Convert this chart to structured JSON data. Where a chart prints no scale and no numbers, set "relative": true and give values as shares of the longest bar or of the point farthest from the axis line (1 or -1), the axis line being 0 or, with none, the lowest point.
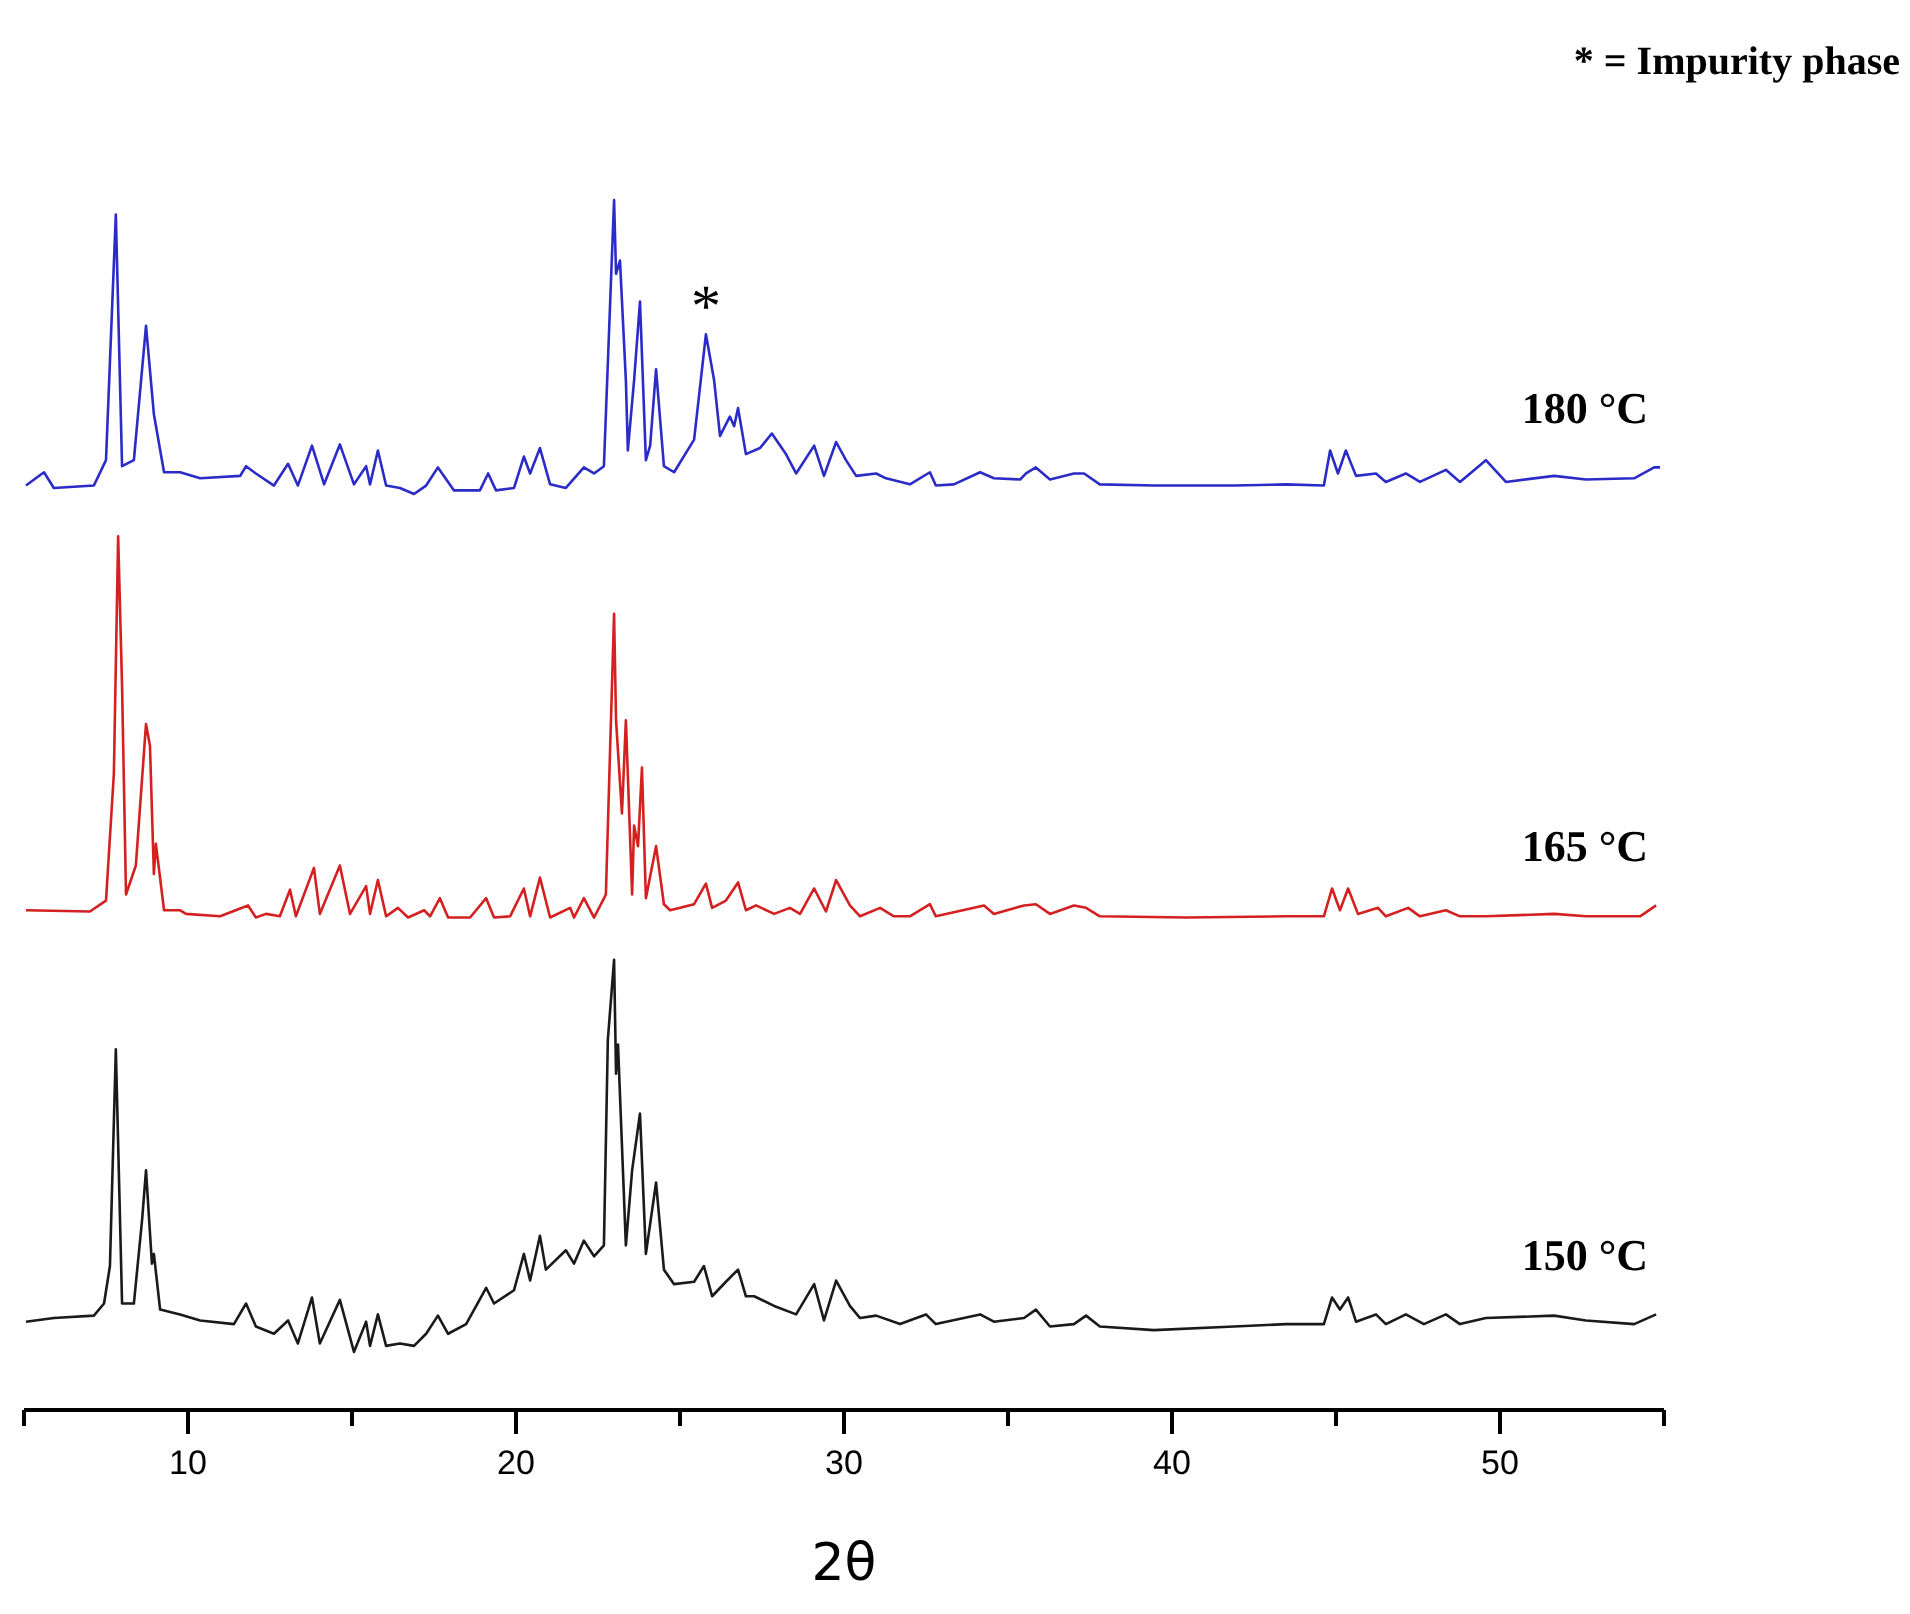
{
  "chart_data": {
    "type": "line",
    "relative": true,
    "xlabel": "2θ",
    "grid": false,
    "marker": "none",
    "line_style": "solid",
    "xlim": [
      5,
      55
    ],
    "xticks": [
      {
        "value": 5,
        "label": null
      },
      10,
      {
        "value": 15,
        "label": null
      },
      20,
      {
        "value": 25,
        "label": null
      },
      30,
      {
        "value": 35,
        "label": null
      },
      40,
      {
        "value": 45,
        "label": null
      },
      50,
      {
        "value": 55,
        "label": null
      }
    ],
    "annotations": [
      "* = Impurity phase",
      {
        "text": "*",
        "x": 25.79,
        "y": 0.889
      }
    ],
    "series": [
      {
        "name": "180 °C",
        "color": "#2b2bc8",
        "x": [
          5.06,
          5.61,
          5.91,
          7.13,
          7.5,
          7.8,
          7.99,
          8.35,
          8.72,
          8.96,
          9.27,
          9.76,
          10.37,
          11.59,
          11.77,
          12.07,
          12.62,
          13.05,
          13.35,
          13.78,
          14.15,
          14.63,
          15.06,
          15.43,
          15.55,
          15.79,
          16.04,
          16.46,
          16.89,
          17.26,
          17.62,
          18.11,
          18.9,
          19.15,
          19.39,
          19.94,
          20.24,
          20.43,
          20.73,
          21.04,
          21.52,
          22.07,
          22.38,
          22.68,
          22.99,
          23.05,
          23.17,
          23.35,
          23.41,
          23.6,
          23.78,
          23.96,
          24.09,
          24.27,
          24.51,
          24.82,
          25.43,
          25.79,
          26.04,
          26.22,
          26.52,
          26.65,
          26.77,
          27.01,
          27.44,
          27.8,
          28.23,
          28.54,
          29.09,
          29.39,
          29.76,
          30.06,
          30.37,
          30.98,
          31.28,
          32.01,
          32.62,
          32.8,
          33.35,
          34.15,
          34.57,
          35.37,
          35.55,
          35.85,
          36.28,
          37.01,
          37.32,
          37.8,
          39.45,
          41.89,
          43.48,
          44.63,
          44.82,
          45.06,
          45.3,
          45.61,
          46.22,
          46.52,
          47.13,
          47.56,
          48.35,
          48.78,
          49.57,
          50.18,
          51.65,
          52.62,
          54.09,
          54.7,
          54.88
        ],
        "values": [
          0.764,
          0.775,
          0.762,
          0.764,
          0.785,
          0.988,
          0.78,
          0.785,
          0.896,
          0.823,
          0.775,
          0.775,
          0.77,
          0.772,
          0.78,
          0.774,
          0.764,
          0.782,
          0.764,
          0.797,
          0.765,
          0.798,
          0.765,
          0.78,
          0.765,
          0.793,
          0.764,
          0.762,
          0.757,
          0.764,
          0.779,
          0.76,
          0.76,
          0.774,
          0.76,
          0.762,
          0.788,
          0.774,
          0.795,
          0.765,
          0.762,
          0.779,
          0.774,
          0.78,
          1,
          0.939,
          0.95,
          0.851,
          0.793,
          0.851,
          0.916,
          0.785,
          0.797,
          0.86,
          0.78,
          0.775,
          0.802,
          0.889,
          0.851,
          0.805,
          0.821,
          0.813,
          0.828,
          0.79,
          0.795,
          0.807,
          0.79,
          0.774,
          0.797,
          0.772,
          0.8,
          0.785,
          0.772,
          0.774,
          0.77,
          0.765,
          0.775,
          0.764,
          0.765,
          0.775,
          0.77,
          0.769,
          0.774,
          0.779,
          0.769,
          0.774,
          0.774,
          0.765,
          0.764,
          0.764,
          0.765,
          0.764,
          0.793,
          0.774,
          0.793,
          0.772,
          0.774,
          0.767,
          0.774,
          0.767,
          0.777,
          0.767,
          0.785,
          0.767,
          0.772,
          0.769,
          0.77,
          0.779,
          0.779
        ]
      },
      {
        "name": "165 °C",
        "color": "#d42020",
        "x": [
          5.06,
          7.01,
          7.5,
          7.74,
          7.87,
          7.99,
          8.11,
          8.41,
          8.72,
          8.84,
          8.96,
          9.02,
          9.27,
          9.76,
          9.94,
          10.98,
          11.83,
          12.07,
          12.38,
          12.8,
          13.11,
          13.29,
          13.84,
          14.02,
          14.63,
          14.94,
          15.43,
          15.55,
          15.79,
          16.04,
          16.4,
          16.71,
          17.2,
          17.38,
          17.68,
          17.93,
          18.6,
          19.09,
          19.33,
          19.82,
          20.24,
          20.43,
          20.73,
          21.04,
          21.65,
          21.77,
          22.07,
          22.38,
          22.74,
          22.99,
          23.05,
          23.23,
          23.35,
          23.54,
          23.6,
          23.72,
          23.84,
          23.96,
          24.27,
          24.51,
          24.7,
          25.43,
          25.79,
          25.98,
          26.4,
          26.77,
          27.01,
          27.32,
          27.87,
          28.35,
          28.66,
          29.09,
          29.45,
          29.76,
          30.18,
          30.49,
          31.1,
          31.52,
          32.01,
          32.62,
          32.8,
          34.27,
          34.57,
          35.49,
          35.85,
          36.28,
          37.01,
          37.38,
          37.8,
          40.43,
          43.48,
          44.63,
          44.88,
          45.12,
          45.37,
          45.67,
          46.28,
          46.52,
          47.2,
          47.56,
          48.35,
          48.78,
          49.57,
          51.65,
          52.62,
          54.27,
          54.76
        ],
        "values": [
          0.413,
          0.412,
          0.421,
          0.526,
          0.722,
          0.598,
          0.426,
          0.45,
          0.567,
          0.549,
          0.443,
          0.468,
          0.413,
          0.413,
          0.41,
          0.408,
          0.417,
          0.407,
          0.41,
          0.408,
          0.43,
          0.408,
          0.448,
          0.41,
          0.45,
          0.41,
          0.433,
          0.41,
          0.438,
          0.408,
          0.415,
          0.407,
          0.413,
          0.408,
          0.423,
          0.407,
          0.407,
          0.423,
          0.407,
          0.408,
          0.431,
          0.408,
          0.44,
          0.407,
          0.415,
          0.407,
          0.423,
          0.407,
          0.426,
          0.658,
          0.57,
          0.493,
          0.57,
          0.426,
          0.483,
          0.466,
          0.531,
          0.423,
          0.466,
          0.418,
          0.413,
          0.418,
          0.435,
          0.415,
          0.421,
          0.436,
          0.413,
          0.417,
          0.41,
          0.415,
          0.41,
          0.431,
          0.412,
          0.438,
          0.417,
          0.408,
          0.415,
          0.408,
          0.408,
          0.418,
          0.408,
          0.417,
          0.41,
          0.417,
          0.418,
          0.41,
          0.417,
          0.415,
          0.408,
          0.407,
          0.408,
          0.408,
          0.431,
          0.413,
          0.431,
          0.41,
          0.415,
          0.408,
          0.415,
          0.408,
          0.413,
          0.408,
          0.408,
          0.41,
          0.408,
          0.408,
          0.417
        ]
      },
      {
        "name": "150 °C",
        "color": "#1a1a1a",
        "x": [
          5.06,
          5.91,
          7.13,
          7.44,
          7.62,
          7.8,
          7.99,
          8.35,
          8.6,
          8.72,
          8.9,
          8.96,
          9.15,
          9.76,
          10.37,
          11.4,
          11.77,
          12.07,
          12.62,
          13.05,
          13.35,
          13.78,
          14.02,
          14.63,
          15.06,
          15.43,
          15.55,
          15.79,
          16.04,
          16.46,
          16.89,
          17.26,
          17.62,
          17.93,
          18.48,
          19.09,
          19.33,
          19.94,
          20.24,
          20.43,
          20.73,
          20.91,
          21.52,
          21.77,
          22.07,
          22.38,
          22.68,
          22.8,
          22.99,
          23.05,
          23.11,
          23.35,
          23.54,
          23.78,
          23.96,
          24.27,
          24.51,
          24.82,
          25.43,
          25.73,
          25.98,
          26.4,
          26.77,
          27.01,
          27.26,
          27.87,
          28.54,
          29.09,
          29.39,
          29.76,
          30.18,
          30.49,
          30.98,
          31.71,
          32.5,
          32.8,
          34.15,
          34.57,
          35.49,
          35.85,
          36.28,
          37.01,
          37.38,
          37.8,
          39.45,
          41.89,
          43.48,
          44.63,
          44.88,
          45.12,
          45.37,
          45.61,
          46.22,
          46.52,
          47.13,
          47.68,
          48.35,
          48.78,
          49.57,
          51.65,
          52.62,
          54.09,
          54.76
        ],
        "values": [
          0.073,
          0.076,
          0.078,
          0.088,
          0.119,
          0.298,
          0.088,
          0.088,
          0.157,
          0.198,
          0.121,
          0.129,
          0.083,
          0.079,
          0.074,
          0.071,
          0.088,
          0.069,
          0.063,
          0.074,
          0.055,
          0.093,
          0.055,
          0.091,
          0.048,
          0.073,
          0.053,
          0.079,
          0.053,
          0.055,
          0.053,
          0.063,
          0.078,
          0.063,
          0.071,
          0.101,
          0.088,
          0.099,
          0.129,
          0.107,
          0.144,
          0.116,
          0.132,
          0.121,
          0.14,
          0.127,
          0.136,
          0.306,
          0.372,
          0.278,
          0.302,
          0.136,
          0.198,
          0.245,
          0.129,
          0.188,
          0.116,
          0.104,
          0.106,
          0.119,
          0.094,
          0.106,
          0.116,
          0.094,
          0.094,
          0.086,
          0.079,
          0.104,
          0.074,
          0.107,
          0.086,
          0.076,
          0.078,
          0.071,
          0.079,
          0.071,
          0.079,
          0.073,
          0.076,
          0.083,
          0.069,
          0.071,
          0.078,
          0.069,
          0.066,
          0.069,
          0.071,
          0.071,
          0.093,
          0.083,
          0.093,
          0.073,
          0.079,
          0.071,
          0.079,
          0.071,
          0.079,
          0.071,
          0.076,
          0.078,
          0.074,
          0.071,
          0.079
        ]
      }
    ]
  }
}
